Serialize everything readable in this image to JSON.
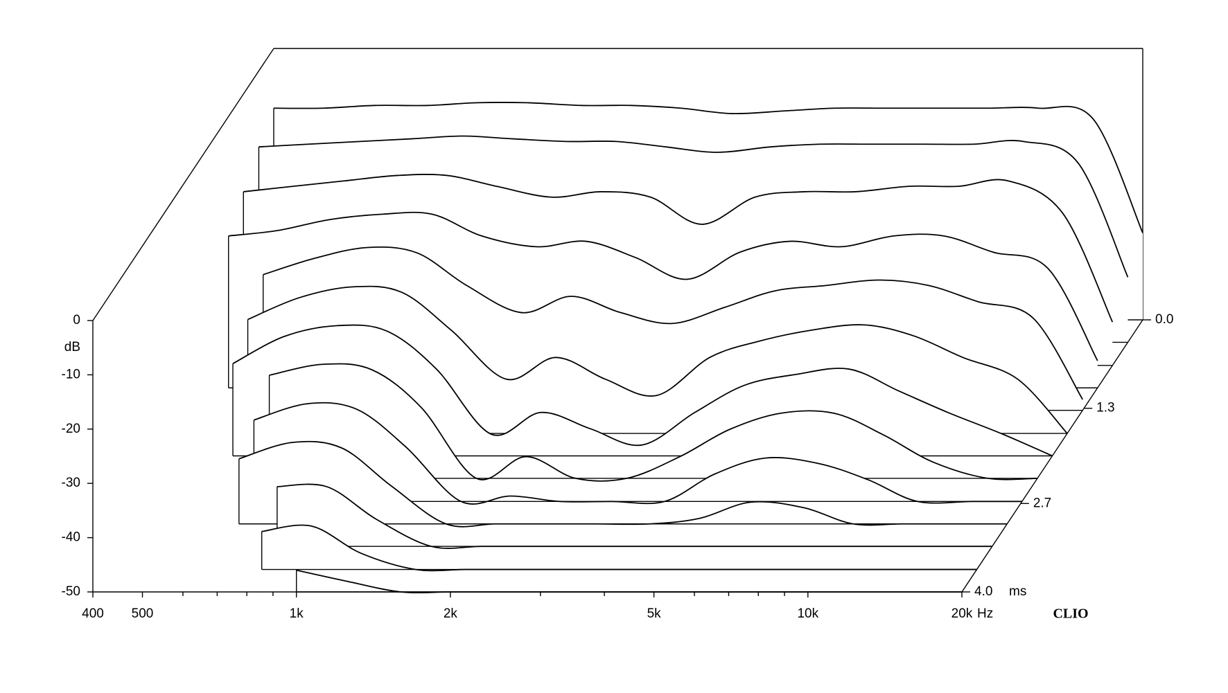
{
  "chart_data": {
    "type": "waterfall",
    "brand": "CLIO",
    "xlabel": "Hz",
    "ylabel": "dB",
    "zlabel": "ms",
    "log_x": true,
    "xlim": [
      400,
      20000
    ],
    "xticks": [
      400,
      500,
      {
        "value": 1000,
        "label": "1k"
      },
      {
        "value": 2000,
        "label": "2k"
      },
      {
        "value": 5000,
        "label": "5k"
      },
      {
        "value": 10000,
        "label": "10k"
      },
      {
        "value": 20000,
        "label": "20k"
      }
    ],
    "xminorticks": [
      600,
      700,
      800,
      900,
      3000,
      4000,
      6000,
      7000,
      8000,
      9000
    ],
    "ylim": [
      -50,
      0
    ],
    "yticks": [
      0,
      -10,
      -20,
      -30,
      -40,
      -50
    ],
    "zlim": [
      0,
      4.0
    ],
    "zticks": [
      {
        "value": 0,
        "label": "0.0"
      },
      1.3,
      2.7,
      {
        "value": 4.0,
        "label": "4.0"
      }
    ],
    "color": "#000000",
    "x": [
      400,
      500,
      630,
      800,
      1000,
      1250,
      1600,
      2000,
      2500,
      3150,
      4000,
      5000,
      6300,
      8000,
      10000,
      12500,
      16000,
      20000
    ],
    "z": [
      0,
      0.33,
      0.67,
      1.0,
      1.33,
      1.67,
      2.0,
      2.33,
      2.67,
      3.0,
      3.33,
      3.67,
      4.0
    ],
    "slices": [
      [
        -11,
        -11,
        -10.5,
        -10.5,
        -10,
        -10,
        -10.5,
        -10.5,
        -11,
        -12,
        -11.5,
        -11,
        -11,
        -11,
        -11,
        -11,
        -13,
        -34
      ],
      [
        -14,
        -13.5,
        -13,
        -12.5,
        -12,
        -12.5,
        -13,
        -13,
        -14,
        -15,
        -14,
        -13.5,
        -13.5,
        -13.5,
        -13.5,
        -13,
        -17,
        -38
      ],
      [
        -18,
        -17,
        -16,
        -15,
        -15,
        -17,
        -19,
        -18,
        -19,
        -24,
        -19,
        -18,
        -18,
        -17,
        -17,
        -16,
        -22,
        -42
      ],
      [
        -22,
        -21,
        -19,
        -18,
        -18,
        -22,
        -24,
        -23,
        -26,
        -30,
        -25,
        -23,
        -24,
        -22,
        -22,
        -25,
        -28,
        -45
      ],
      [
        null,
        -25,
        -22,
        -20,
        -21,
        -27,
        -32,
        -29,
        -32,
        -34,
        -31,
        -28,
        -27,
        -26,
        -27,
        -30,
        -33,
        -48
      ],
      [
        null,
        -29,
        -25,
        -23,
        -24,
        -31,
        -40,
        -36,
        -40,
        -43,
        -36,
        -33,
        -31,
        -30,
        -32,
        -36,
        -40,
        -50
      ],
      [
        null,
        -33,
        -28,
        -26,
        -27,
        -34,
        -46,
        -42,
        -45,
        -48,
        -42,
        -37,
        -35,
        -34,
        -38,
        -42,
        -46,
        -50
      ],
      [
        null,
        null,
        -31,
        -29,
        -30,
        -37,
        -50,
        -46,
        -50,
        -50,
        -46,
        -41,
        -38,
        -38,
        -42,
        -47,
        -50,
        -50
      ],
      [
        null,
        null,
        -35,
        -32,
        -33,
        -40,
        -50,
        -49,
        -50,
        -50,
        -50,
        -45,
        -42,
        -43,
        -46,
        -50,
        -50,
        -50
      ],
      [
        null,
        null,
        -38,
        -35,
        -36,
        -43,
        -50,
        -50,
        -50,
        -50,
        -50,
        -49,
        -46,
        -47,
        -50,
        -50,
        -50,
        -50
      ],
      [
        null,
        null,
        null,
        -39,
        -39,
        -45,
        -50,
        -50,
        -50,
        -50,
        -50,
        -50,
        -50,
        -50,
        -50,
        -50,
        -50,
        -50
      ],
      [
        null,
        null,
        null,
        -43,
        -42,
        -47,
        -50,
        -50,
        -50,
        -50,
        -50,
        -50,
        -50,
        -50,
        -50,
        -50,
        -50,
        -50
      ],
      [
        null,
        null,
        null,
        null,
        -46,
        -48,
        -50,
        -50,
        -50,
        -50,
        -50,
        -50,
        -50,
        -50,
        -50,
        -50,
        -50,
        -50
      ]
    ]
  }
}
